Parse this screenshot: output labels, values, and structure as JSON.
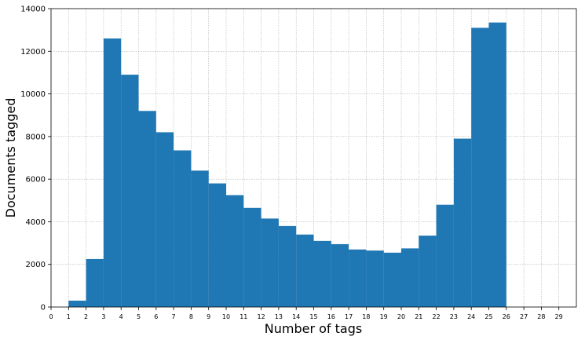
{
  "chart_data": {
    "type": "bar",
    "xlabel": "Number of tags",
    "ylabel": "Documents tagged",
    "xlim": [
      0,
      30
    ],
    "ylim": [
      0,
      14000
    ],
    "grid": true,
    "bar_color": "#1f77b4",
    "grid_color": "#b0b0b0",
    "x_ticks": [
      "0",
      "1",
      "2",
      "3",
      "4",
      "5",
      "6",
      "7",
      "8",
      "9",
      "10",
      "11",
      "12",
      "13",
      "14",
      "15",
      "16",
      "17",
      "18",
      "19",
      "20",
      "21",
      "22",
      "23",
      "24",
      "25",
      "26",
      "27",
      "28",
      "29"
    ],
    "y_ticks": [
      "0",
      "2000",
      "4000",
      "6000",
      "8000",
      "10000",
      "12000",
      "14000"
    ],
    "bins": [
      {
        "x0": 1,
        "x1": 2,
        "value": 300
      },
      {
        "x0": 2,
        "x1": 3,
        "value": 2250
      },
      {
        "x0": 3,
        "x1": 4,
        "value": 12600
      },
      {
        "x0": 4,
        "x1": 5,
        "value": 10900
      },
      {
        "x0": 5,
        "x1": 6,
        "value": 9200
      },
      {
        "x0": 6,
        "x1": 7,
        "value": 8200
      },
      {
        "x0": 7,
        "x1": 8,
        "value": 7350
      },
      {
        "x0": 8,
        "x1": 9,
        "value": 6400
      },
      {
        "x0": 9,
        "x1": 10,
        "value": 5800
      },
      {
        "x0": 10,
        "x1": 11,
        "value": 5250
      },
      {
        "x0": 11,
        "x1": 12,
        "value": 4650
      },
      {
        "x0": 12,
        "x1": 13,
        "value": 4150
      },
      {
        "x0": 13,
        "x1": 14,
        "value": 3800
      },
      {
        "x0": 14,
        "x1": 15,
        "value": 3400
      },
      {
        "x0": 15,
        "x1": 16,
        "value": 3100
      },
      {
        "x0": 16,
        "x1": 17,
        "value": 2950
      },
      {
        "x0": 17,
        "x1": 18,
        "value": 2700
      },
      {
        "x0": 18,
        "x1": 19,
        "value": 2650
      },
      {
        "x0": 19,
        "x1": 20,
        "value": 2550
      },
      {
        "x0": 20,
        "x1": 21,
        "value": 2750
      },
      {
        "x0": 21,
        "x1": 22,
        "value": 3350
      },
      {
        "x0": 22,
        "x1": 23,
        "value": 4800
      },
      {
        "x0": 23,
        "x1": 24,
        "value": 7900
      },
      {
        "x0": 24,
        "x1": 25,
        "value": 13100
      },
      {
        "x0": 25,
        "x1": 26,
        "value": 13350
      }
    ]
  }
}
